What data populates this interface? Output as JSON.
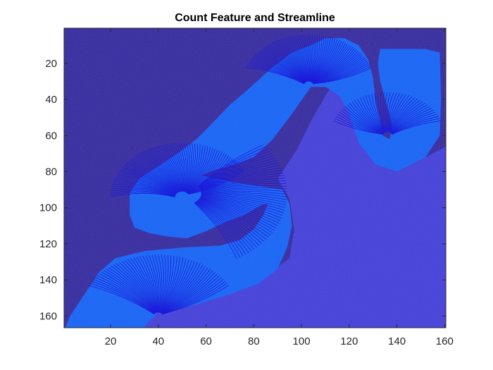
{
  "chart_data": {
    "type": "heatmap",
    "title": "Count Feature and Streamline",
    "xlabel": "",
    "ylabel": "",
    "xlim": [
      0.5,
      160.5
    ],
    "ylim": [
      0.5,
      166.5
    ],
    "y_direction": "reverse",
    "x_ticks": [
      20,
      40,
      60,
      80,
      100,
      120,
      140,
      160
    ],
    "x_tick_labels": [
      "20",
      "40",
      "60",
      "80",
      "100",
      "120",
      "140",
      "160"
    ],
    "y_ticks": [
      20,
      40,
      60,
      80,
      100,
      120,
      140,
      160
    ],
    "y_tick_labels": [
      "20",
      "40",
      "60",
      "80",
      "100",
      "120",
      "140",
      "160"
    ],
    "grid": false,
    "colormap": "parula",
    "overlay": "streamlines",
    "colors": {
      "background_count": "#3d2ea0",
      "tissue_count": "#4a43d9",
      "cortex_count": "#1e66f5",
      "hot_count": "#2ce6d2",
      "streamline": "#1b1bd8"
    }
  }
}
